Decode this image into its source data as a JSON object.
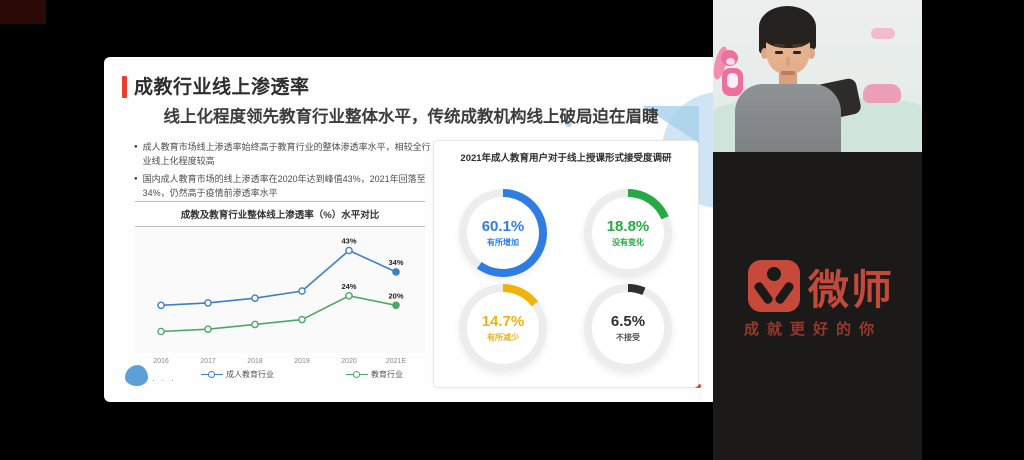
{
  "colors": {
    "accent_red": "#e8402d",
    "slide_bg": "#ffffff",
    "panel_bg": "#1c1a18",
    "logo_red": "#c7493a"
  },
  "slide": {
    "title": "成教行业线上渗透率",
    "subtitle": "线上化程度领先教育行业整体水平，传统成教机构线上破局迫在眉睫",
    "bullets": [
      "成人教育市场线上渗透率始终高于教育行业的整体渗透率水平，相较全行业线上化程度较高",
      "国内成人教育市场的线上渗透率在2020年达到峰值43%，2021年回落至34%，仍然高于疫情前渗透率水平"
    ],
    "ellipsis": "· · ·"
  },
  "chart_data": [
    {
      "type": "line",
      "title": "成教及教育行业整体线上渗透率（%）水平对比",
      "x": [
        "2016",
        "2017",
        "2018",
        "2019",
        "2020",
        "2021E"
      ],
      "series": [
        {
          "name": "成人教育行业",
          "color": "#3f7fc4",
          "values": [
            20,
            21,
            23,
            26,
            43,
            34
          ],
          "labels": [
            "",
            "",
            "",
            "",
            "43%",
            "34%"
          ]
        },
        {
          "name": "教育行业",
          "color": "#4ca866",
          "values": [
            9,
            10,
            12,
            14,
            24,
            20
          ],
          "labels": [
            "",
            "",
            "",
            "",
            "24%",
            "20%"
          ]
        }
      ],
      "ylim": [
        0,
        52
      ],
      "grid": false,
      "legend_position": "bottom"
    },
    {
      "type": "pie",
      "title": "2021年成人教育用户对于线上授课形式接受度调研",
      "slices": [
        {
          "label": "有所增加",
          "value": 60.1,
          "display": "60.1%",
          "color": "#2f7de1",
          "label_color": "#2f7de1"
        },
        {
          "label": "没有变化",
          "value": 18.8,
          "display": "18.8%",
          "color": "#27a844",
          "label_color": "#27a844"
        },
        {
          "label": "有所减少",
          "value": 14.7,
          "display": "14.7%",
          "color": "#efb30b",
          "label_color": "#efb30b"
        },
        {
          "label": "不接受",
          "value": 6.5,
          "display": "6.5%",
          "color": "#2f2f2f",
          "label_color": "#555555"
        }
      ]
    }
  ],
  "branding": {
    "logo_text": "微师",
    "tagline": "成就更好的你"
  }
}
